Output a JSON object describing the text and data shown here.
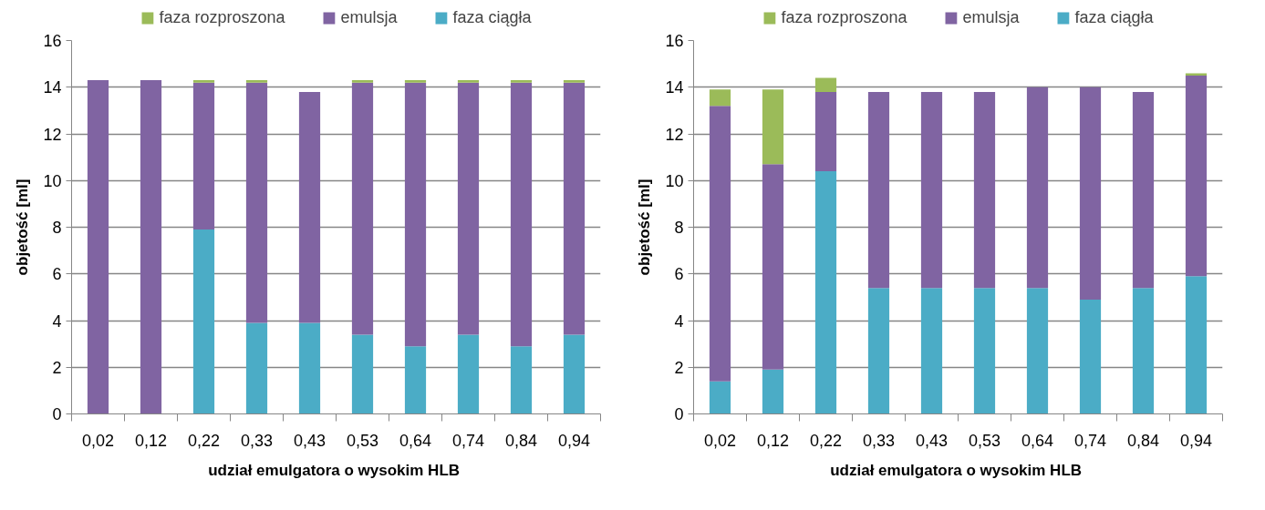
{
  "chart_data": [
    {
      "type": "bar",
      "stacked": true,
      "categories": [
        "0,02",
        "0,12",
        "0,22",
        "0,33",
        "0,43",
        "0,53",
        "0,64",
        "0,74",
        "0,84",
        "0,94"
      ],
      "series": [
        {
          "name": "faza ciągła",
          "color": "#4bacc6",
          "values": [
            0,
            0,
            7.9,
            3.9,
            3.9,
            3.4,
            2.9,
            3.4,
            2.9,
            3.4
          ]
        },
        {
          "name": "emulsja",
          "color": "#8064a2",
          "values": [
            14.3,
            14.3,
            6.3,
            10.3,
            9.9,
            10.8,
            11.3,
            10.8,
            11.3,
            10.8
          ]
        },
        {
          "name": "faza rozproszona",
          "color": "#9bbb59",
          "values": [
            0,
            0,
            0.1,
            0.1,
            0,
            0.1,
            0.1,
            0.1,
            0.1,
            0.1
          ]
        }
      ],
      "ylim": [
        0,
        16
      ],
      "yticks": [
        0,
        2,
        4,
        6,
        8,
        10,
        12,
        14,
        16
      ],
      "xlabel": "udział  emulgatora o wysokim HLB",
      "ylabel": "objetość [ml]",
      "grid": "y",
      "legend": "top"
    },
    {
      "type": "bar",
      "stacked": true,
      "categories": [
        "0,02",
        "0,12",
        "0,22",
        "0,33",
        "0,43",
        "0,53",
        "0,64",
        "0,74",
        "0,84",
        "0,94"
      ],
      "series": [
        {
          "name": "faza ciągła",
          "color": "#4bacc6",
          "values": [
            1.4,
            1.9,
            10.4,
            5.4,
            5.4,
            5.4,
            5.4,
            4.9,
            5.4,
            5.9
          ]
        },
        {
          "name": "emulsja",
          "color": "#8064a2",
          "values": [
            11.8,
            8.8,
            3.4,
            8.4,
            8.4,
            8.4,
            8.6,
            9.1,
            8.4,
            8.6
          ]
        },
        {
          "name": "faza rozproszona",
          "color": "#9bbb59",
          "values": [
            0.7,
            3.2,
            0.6,
            0,
            0,
            0,
            0,
            0,
            0,
            0.1
          ]
        }
      ],
      "ylim": [
        0,
        16
      ],
      "yticks": [
        0,
        2,
        4,
        6,
        8,
        10,
        12,
        14,
        16
      ],
      "xlabel": "udział  emulgatora o wysokim HLB",
      "ylabel": "objetość [ml]",
      "grid": "y",
      "legend": "top"
    }
  ]
}
